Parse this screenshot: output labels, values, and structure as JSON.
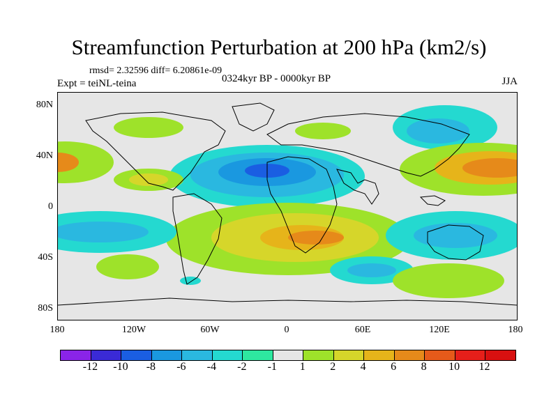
{
  "title": "Streamfunction Perturbation at 200 hPa (km2/s)",
  "stats": "rmsd= 2.32596 diff= 6.20861e-09",
  "experiment": "Expt = teiNL-teina",
  "period": "0324kyr BP - 0000kyr BP",
  "season": "JJA",
  "lat_ticks": [
    "80N",
    "40N",
    "0",
    "40S",
    "80S"
  ],
  "lon_ticks": [
    "180",
    "120W",
    "60W",
    "0",
    "60E",
    "120E",
    "180"
  ],
  "colorbar": {
    "labels": [
      "-12",
      "-10",
      "-8",
      "-6",
      "-4",
      "-2",
      "-1",
      "1",
      "2",
      "4",
      "6",
      "8",
      "10",
      "12"
    ],
    "colors": [
      "#8a24e8",
      "#3a2ad6",
      "#1a5ee2",
      "#1a98e0",
      "#2ab8e0",
      "#24d9d0",
      "#2ee8a0",
      "#e6e6e6",
      "#9ee22a",
      "#d6d62a",
      "#e6b41a",
      "#e68a1a",
      "#e65a1a",
      "#e61f1a",
      "#d81010"
    ]
  }
}
